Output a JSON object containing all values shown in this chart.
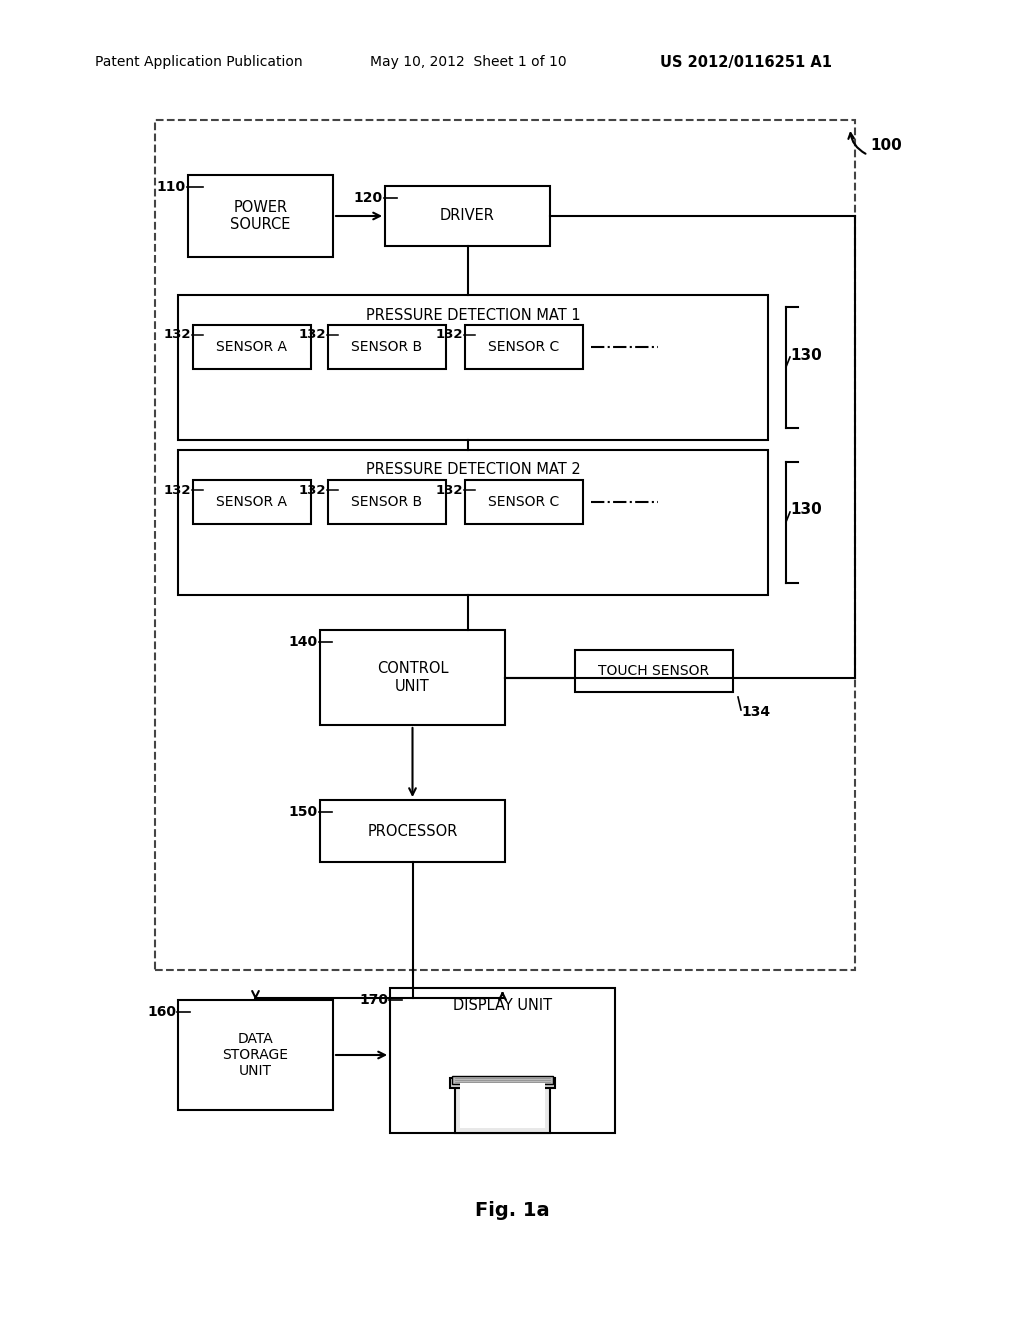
{
  "header_left": "Patent Application Publication",
  "header_mid": "May 10, 2012  Sheet 1 of 10",
  "header_right": "US 2012/0116251 A1",
  "fig_label": "Fig. 1a",
  "bg_color": "#ffffff",
  "label_100": "100",
  "label_110": "110",
  "label_120": "120",
  "label_130a": "130",
  "label_130b": "130",
  "label_132": "132",
  "label_134": "134",
  "label_140": "140",
  "label_150": "150",
  "label_160": "160",
  "label_170": "170",
  "power_source": "POWER\nSOURCE",
  "driver": "DRIVER",
  "mat1_title": "PRESSURE DETECTION MAT 1",
  "mat2_title": "PRESSURE DETECTION MAT 2",
  "sensor_a": "SENSOR A",
  "sensor_b": "SENSOR B",
  "sensor_c": "SENSOR C",
  "control_unit": "CONTROL\nUNIT",
  "touch_sensor": "TOUCH SENSOR",
  "processor": "PROCESSOR",
  "data_storage": "DATA\nSTORAGE\nUNIT",
  "display_unit": "DISPLAY UNIT"
}
